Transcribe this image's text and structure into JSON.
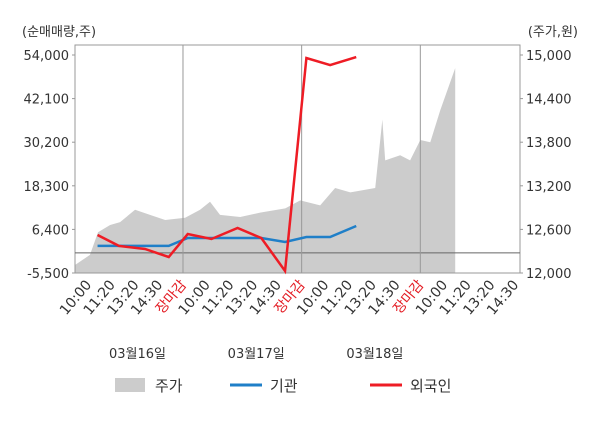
{
  "chart_data": {
    "type": "line",
    "y_axis_label": "(순매매량,주)",
    "y2_axis_label": "(주가,원)",
    "categories": [
      "10:00",
      "11:20",
      "13:20",
      "14:30",
      "장마감",
      "10:00",
      "11:20",
      "13:20",
      "14:30",
      "장마감",
      "10:00",
      "11:20",
      "13:20",
      "14:30",
      "장마감",
      "10:00",
      "11:20",
      "13:20",
      "14:30"
    ],
    "dates": [
      "03월16일",
      "03월17일",
      "03월18일"
    ],
    "xlim": [
      -0.55,
      18.2
    ],
    "ylim": [
      -5500,
      54000
    ],
    "yticks": [
      {
        "value": -5500,
        "label": "-5,500"
      },
      {
        "value": 6400,
        "label": "6,400"
      },
      {
        "value": 18300,
        "label": "18,300"
      },
      {
        "value": 30200,
        "label": "30,200"
      },
      {
        "value": 42100,
        "label": "42,100"
      },
      {
        "value": 54000,
        "label": "54,000"
      }
    ],
    "y2lim": [
      12000,
      15000
    ],
    "y2ticks": [
      {
        "value": 12000,
        "label": "12,000"
      },
      {
        "value": 12600,
        "label": "12,600"
      },
      {
        "value": 13200,
        "label": "13,200"
      },
      {
        "value": 13800,
        "label": "13,800"
      },
      {
        "value": 14400,
        "label": "14,400"
      },
      {
        "value": 15000,
        "label": "15,000"
      }
    ],
    "series": [
      {
        "name": "주가",
        "color": "#cccccc",
        "axis": "y2",
        "x": [
          -0.55,
          0.08,
          0.42,
          0.93,
          1.35,
          1.98,
          2.61,
          3.25,
          4.09,
          4.72,
          5.14,
          5.56,
          6.41,
          7.25,
          8.31,
          8.94,
          9.78,
          10.41,
          11.05,
          12.1,
          12.4,
          12.52,
          13.15,
          13.57,
          14.0,
          14.42,
          14.84,
          15.47
        ],
        "values": [
          12110,
          12250,
          12560,
          12660,
          12700,
          12870,
          12800,
          12730,
          12760,
          12870,
          12980,
          12800,
          12770,
          12830,
          12890,
          13000,
          12930,
          13170,
          13110,
          13170,
          14110,
          13550,
          13620,
          13550,
          13830,
          13800,
          14240,
          14820
        ]
      },
      {
        "name": "기관",
        "color": "#1f7fc8",
        "x": [
          0.4,
          1.3,
          2.4,
          3.4,
          4.2,
          5.2,
          6.3,
          7.3,
          8.3,
          9.2,
          10.2,
          11.3
        ],
        "values": [
          1900,
          1900,
          1900,
          1900,
          4050,
          4050,
          4050,
          4050,
          2960,
          4320,
          4320,
          7330
        ]
      },
      {
        "name": "외국인",
        "color": "#ee1c25",
        "x": [
          0.4,
          1.3,
          2.4,
          3.4,
          4.2,
          5.2,
          6.3,
          7.3,
          8.3,
          9.2,
          10.2,
          11.3
        ],
        "values": [
          4870,
          1900,
          1050,
          -1130,
          5140,
          3780,
          6780,
          4050,
          -4950,
          53170,
          51260,
          53450
        ]
      }
    ]
  }
}
